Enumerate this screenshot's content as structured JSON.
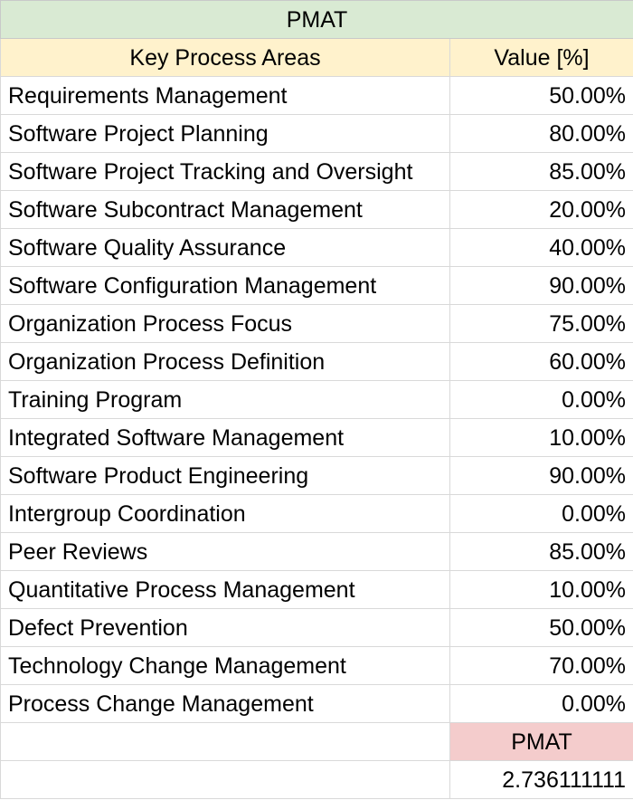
{
  "table_title": "PMAT",
  "headers": {
    "area": "Key Process Areas",
    "value": "Value [%]"
  },
  "rows": [
    {
      "area": "Requirements Management",
      "value": "50.00%"
    },
    {
      "area": "Software Project Planning",
      "value": "80.00%"
    },
    {
      "area": "Software Project Tracking and Oversight",
      "value": "85.00%"
    },
    {
      "area": "Software Subcontract Management",
      "value": "20.00%"
    },
    {
      "area": "Software Quality Assurance",
      "value": "40.00%"
    },
    {
      "area": "Software Configuration Management",
      "value": "90.00%"
    },
    {
      "area": "Organization Process Focus",
      "value": "75.00%"
    },
    {
      "area": "Organization Process Definition",
      "value": "60.00%"
    },
    {
      "area": "Training Program",
      "value": "0.00%"
    },
    {
      "area": "Integrated Software Management",
      "value": "10.00%"
    },
    {
      "area": "Software Product Engineering",
      "value": "90.00%"
    },
    {
      "area": "Intergroup Coordination",
      "value": "0.00%"
    },
    {
      "area": "Peer Reviews",
      "value": "85.00%"
    },
    {
      "area": "Quantitative Process Management",
      "value": "10.00%"
    },
    {
      "area": "Defect Prevention",
      "value": "50.00%"
    },
    {
      "area": "Technology Change Management",
      "value": "70.00%"
    },
    {
      "area": "Process Change Management",
      "value": "0.00%"
    }
  ],
  "summary": {
    "label": "PMAT",
    "result": "2.736111111"
  },
  "colors": {
    "title_fill": "#d9ead3",
    "header_fill": "#fff2cc",
    "pmat_label_fill": "#f4cccc",
    "grid_line": "#d9d9d9"
  }
}
